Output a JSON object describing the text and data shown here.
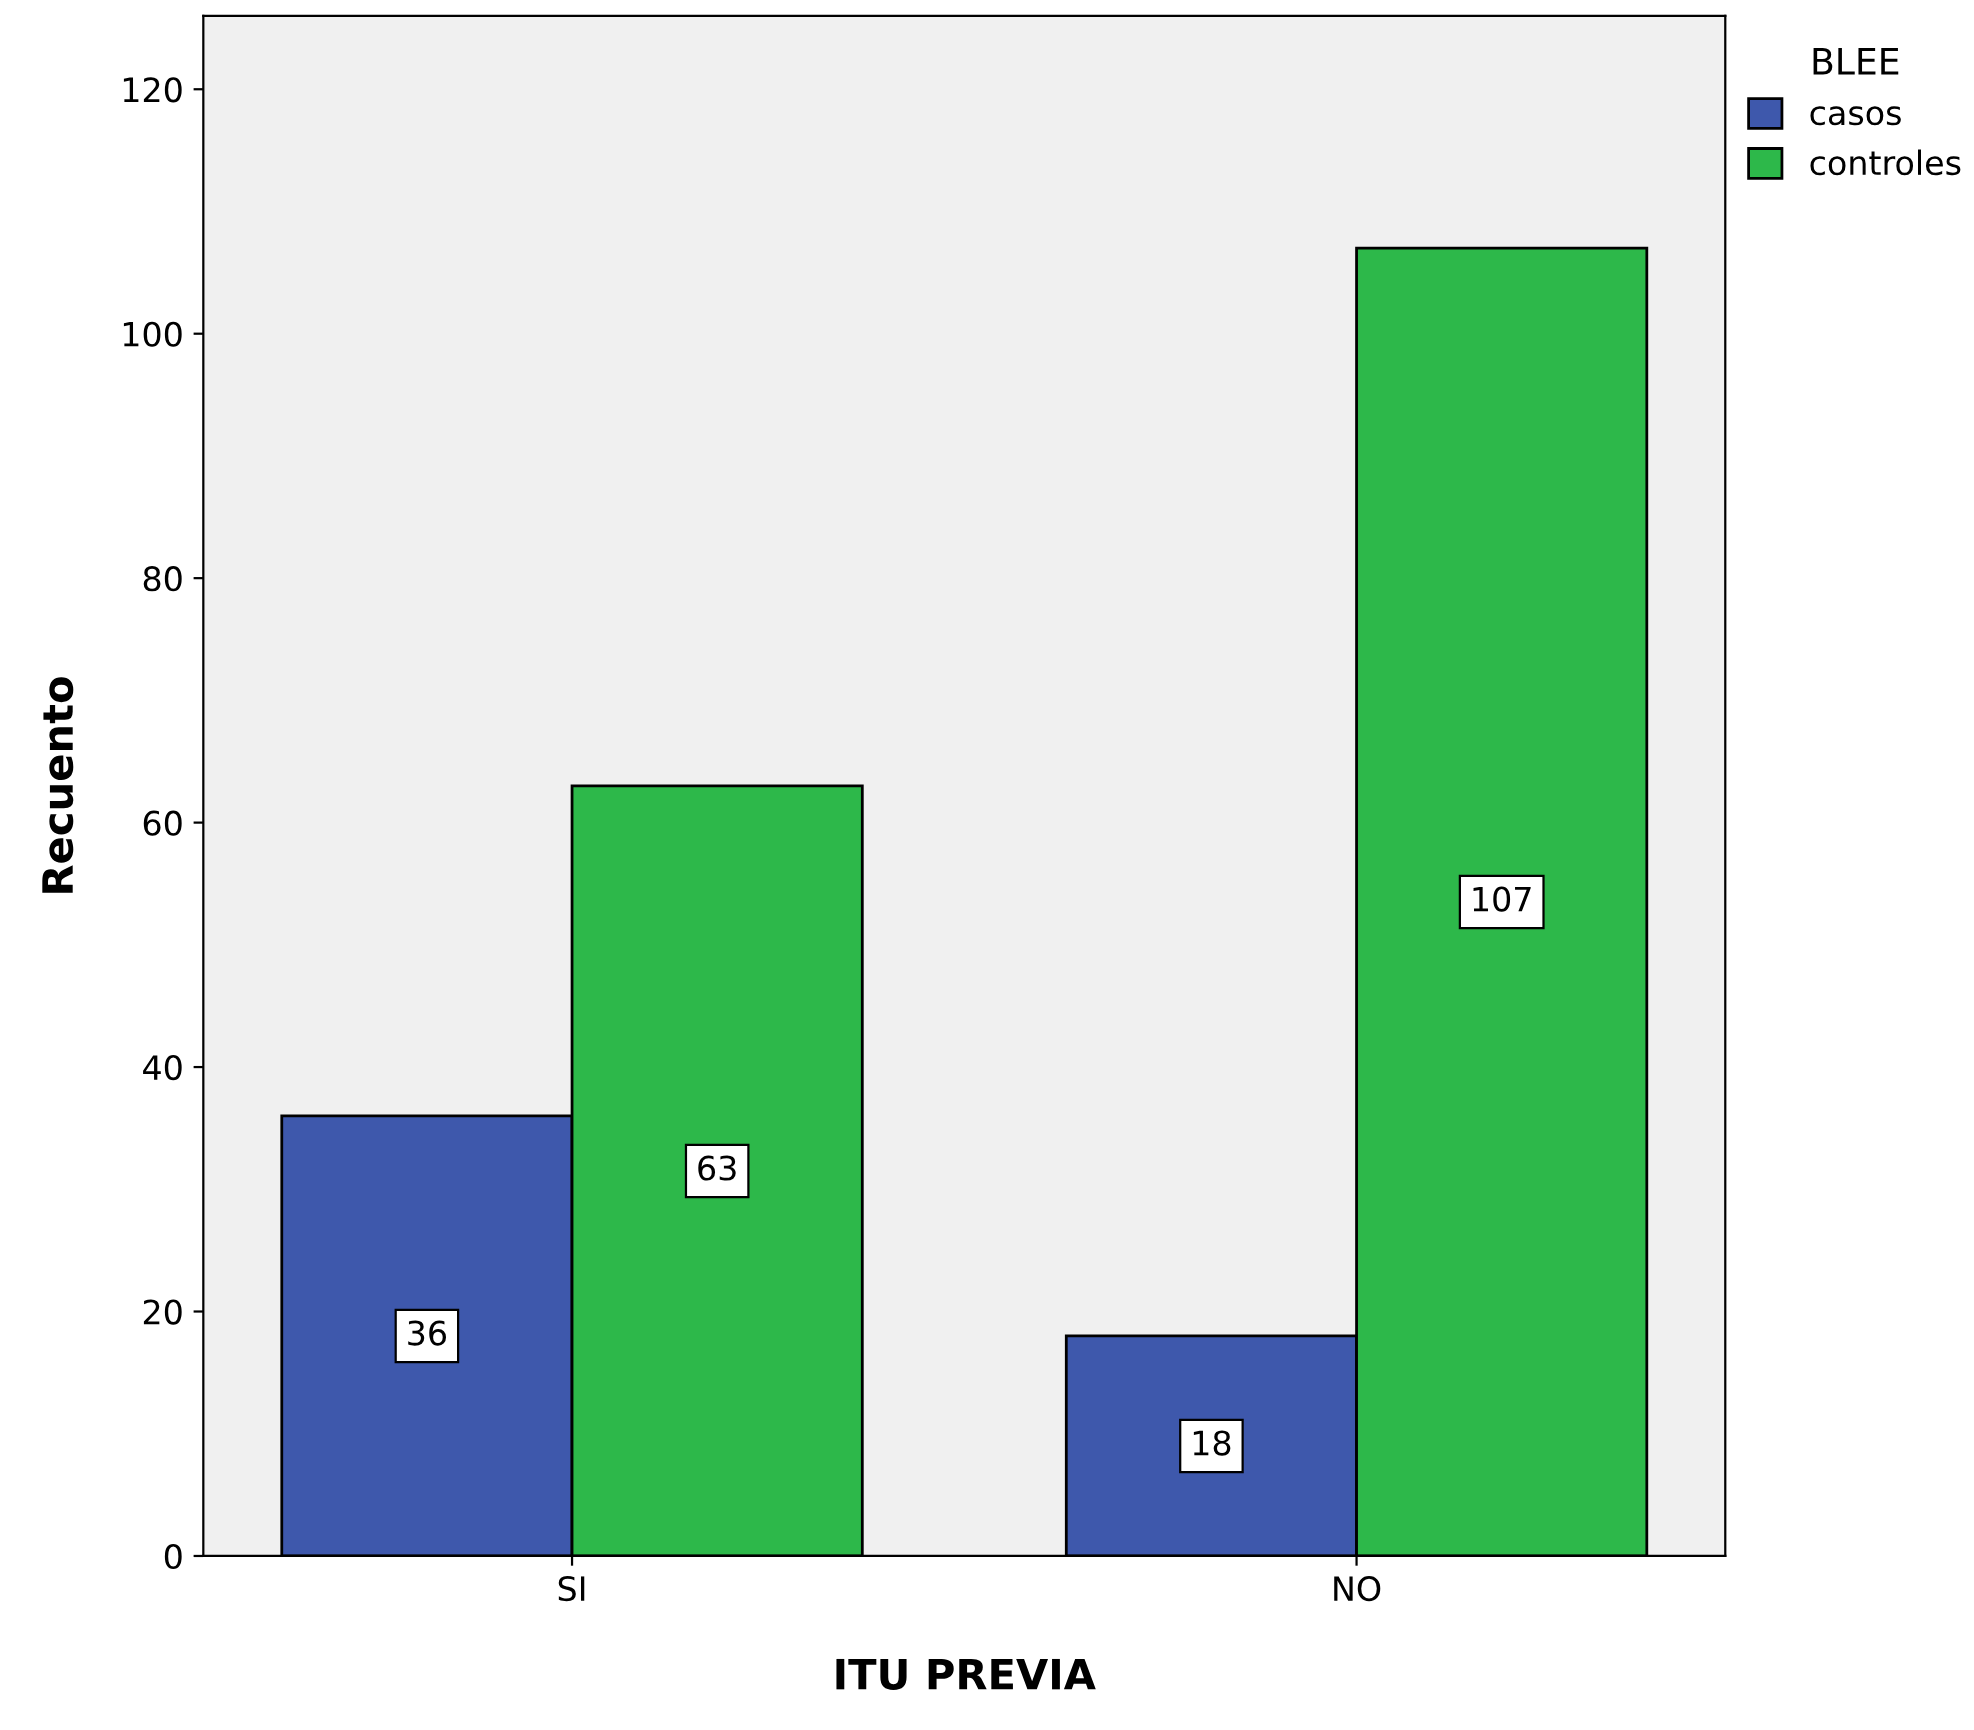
{
  "chart_data": {
    "type": "bar",
    "xlabel": "ITU PREVIA",
    "ylabel": "Recuento",
    "legend_title": "BLEE",
    "categories": [
      "SI",
      "NO"
    ],
    "series": [
      {
        "name": "casos",
        "color": "#3e58ac",
        "values": [
          36,
          18
        ]
      },
      {
        "name": "controles",
        "color": "#2db84a",
        "values": [
          63,
          107
        ]
      }
    ],
    "ylim": [
      0,
      126
    ],
    "yticks": [
      0,
      20,
      40,
      60,
      80,
      100,
      120
    ],
    "grid": false,
    "legend": "top right",
    "data_labels": true
  }
}
